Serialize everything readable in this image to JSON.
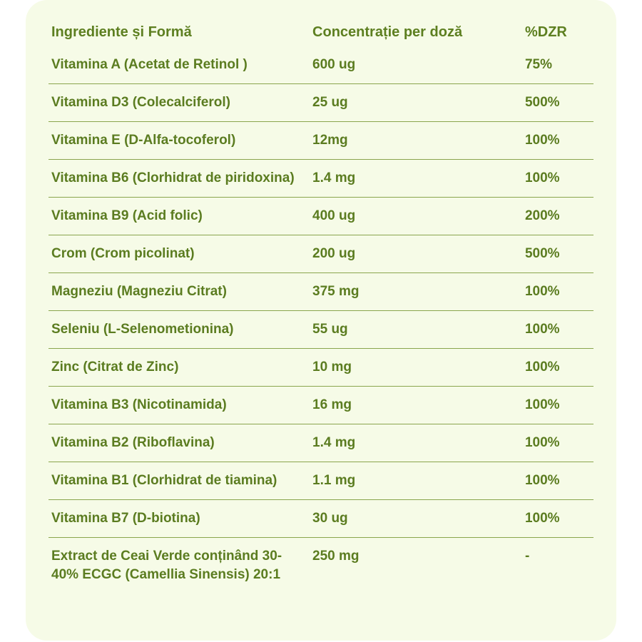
{
  "table": {
    "headers": {
      "ingredient": "Ingrediente și Formă",
      "concentration": "Concentrație per doză",
      "dzr": "%DZR"
    },
    "rows": [
      {
        "ingredient": "Vitamina A (Acetat de Retinol )",
        "concentration": "600 ug",
        "dzr": "75%"
      },
      {
        "ingredient": "Vitamina D3 (Colecalciferol)",
        "concentration": "25 ug",
        "dzr": "500%"
      },
      {
        "ingredient": "Vitamina E (D-Alfa-tocoferol)",
        "concentration": "12mg",
        "dzr": "100%"
      },
      {
        "ingredient": "Vitamina B6 (Clorhidrat de piridoxina)",
        "concentration": "1.4 mg",
        "dzr": "100%"
      },
      {
        "ingredient": "Vitamina B9 (Acid folic)",
        "concentration": "400 ug",
        "dzr": "200%"
      },
      {
        "ingredient": "Crom (Crom picolinat)",
        "concentration": "200 ug",
        "dzr": "500%"
      },
      {
        "ingredient": "Magneziu (Magneziu Citrat)",
        "concentration": "375 mg",
        "dzr": "100%"
      },
      {
        "ingredient": "Seleniu (L-Selenometionina)",
        "concentration": "55 ug",
        "dzr": "100%"
      },
      {
        "ingredient": "Zinc (Citrat de Zinc)",
        "concentration": "10 mg",
        "dzr": "100%"
      },
      {
        "ingredient": "Vitamina B3 (Nicotinamida)",
        "concentration": "16 mg",
        "dzr": "100%"
      },
      {
        "ingredient": "Vitamina B2 (Riboflavina)",
        "concentration": "1.4 mg",
        "dzr": "100%"
      },
      {
        "ingredient": "Vitamina B1 (Clorhidrat de tiamina)",
        "concentration": "1.1 mg",
        "dzr": "100%"
      },
      {
        "ingredient": "Vitamina B7 (D-biotina)",
        "concentration": "30 ug",
        "dzr": "100%"
      },
      {
        "ingredient": "Extract de Ceai Verde conținând 30-40% ECGC (Camellia Sinensis) 20:1",
        "concentration": "250 mg",
        "dzr": "-"
      }
    ]
  },
  "colors": {
    "card_background": "#f6fbe7",
    "text": "#5b7c20",
    "divider": "#8aa54d"
  }
}
